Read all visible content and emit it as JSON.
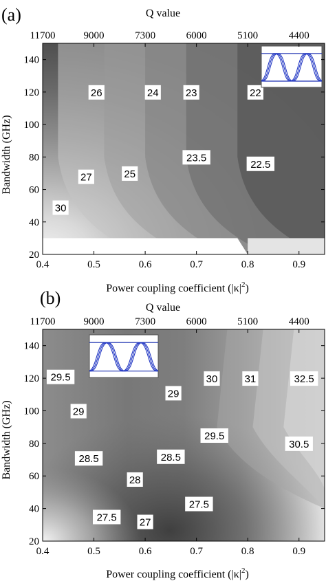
{
  "chart_data": [
    {
      "type": "heatmap",
      "panel_label": "(a)",
      "title": "",
      "xlabel": "Power coupling coefficient (|κ|",
      "xlabel_sup": "2",
      "xlabel_close": ")",
      "ylabel": "Bandwidth (GHz)",
      "top_axis_label": "Q value",
      "xlim": [
        0.4,
        0.95
      ],
      "ylim": [
        20,
        150
      ],
      "x_ticks": [
        0.4,
        0.5,
        0.6,
        0.7,
        0.8,
        0.9
      ],
      "x_tick_labels": [
        "0.4",
        "0.5",
        "0.6",
        "0.7",
        "0.8",
        "0.9"
      ],
      "y_ticks": [
        20,
        40,
        60,
        80,
        100,
        120,
        140
      ],
      "y_tick_labels": [
        "20",
        "40",
        "60",
        "80",
        "100",
        "120",
        "140"
      ],
      "top_ticks": [
        0.4,
        0.5,
        0.6,
        0.7,
        0.8,
        0.9
      ],
      "top_tick_labels": [
        "11700",
        "9000",
        "7300",
        "6000",
        "5100",
        "4400"
      ],
      "colormap": "gray, lighter = higher value",
      "contour_labels": [
        {
          "text": "30",
          "x": 0.435,
          "y": 49
        },
        {
          "text": "27",
          "x": 0.485,
          "y": 68
        },
        {
          "text": "26",
          "x": 0.505,
          "y": 120
        },
        {
          "text": "25",
          "x": 0.57,
          "y": 70
        },
        {
          "text": "24",
          "x": 0.615,
          "y": 120
        },
        {
          "text": "23.5",
          "x": 0.7,
          "y": 80
        },
        {
          "text": "23",
          "x": 0.69,
          "y": 120
        },
        {
          "text": "22.5",
          "x": 0.825,
          "y": 76
        },
        {
          "text": "22",
          "x": 0.815,
          "y": 120
        }
      ],
      "inset": "eye-diagram-inset",
      "inset_position": "top-right"
    },
    {
      "type": "heatmap",
      "panel_label": "(b)",
      "title": "",
      "xlabel": "Power coupling coefficient (|κ|",
      "xlabel_sup": "2",
      "xlabel_close": ")",
      "ylabel": "Bandwidth (GHz)",
      "top_axis_label": "Q value",
      "xlim": [
        0.4,
        0.95
      ],
      "ylim": [
        20,
        150
      ],
      "x_ticks": [
        0.4,
        0.5,
        0.6,
        0.7,
        0.8,
        0.9
      ],
      "x_tick_labels": [
        "0.4",
        "0.5",
        "0.6",
        "0.7",
        "0.8",
        "0.9"
      ],
      "y_ticks": [
        20,
        40,
        60,
        80,
        100,
        120,
        140
      ],
      "y_tick_labels": [
        "20",
        "40",
        "60",
        "80",
        "100",
        "120",
        "140"
      ],
      "top_ticks": [
        0.4,
        0.5,
        0.6,
        0.7,
        0.8,
        0.9
      ],
      "top_tick_labels": [
        "11700",
        "9000",
        "7300",
        "6000",
        "5100",
        "4400"
      ],
      "colormap": "gray, lighter = higher value",
      "contour_labels": [
        {
          "text": "29.5",
          "x": 0.435,
          "y": 121
        },
        {
          "text": "29",
          "x": 0.47,
          "y": 100
        },
        {
          "text": "28.5",
          "x": 0.49,
          "y": 71
        },
        {
          "text": "28",
          "x": 0.58,
          "y": 58
        },
        {
          "text": "28.5",
          "x": 0.65,
          "y": 72
        },
        {
          "text": "29",
          "x": 0.655,
          "y": 111
        },
        {
          "text": "27.5",
          "x": 0.525,
          "y": 35
        },
        {
          "text": "27",
          "x": 0.6,
          "y": 32
        },
        {
          "text": "27.5",
          "x": 0.705,
          "y": 43
        },
        {
          "text": "29.5",
          "x": 0.735,
          "y": 85
        },
        {
          "text": "30",
          "x": 0.73,
          "y": 120
        },
        {
          "text": "31",
          "x": 0.805,
          "y": 120
        },
        {
          "text": "30.5",
          "x": 0.9,
          "y": 80
        },
        {
          "text": "32.5",
          "x": 0.91,
          "y": 120
        }
      ],
      "inset": "eye-diagram-inset",
      "inset_position": "top-left"
    }
  ]
}
